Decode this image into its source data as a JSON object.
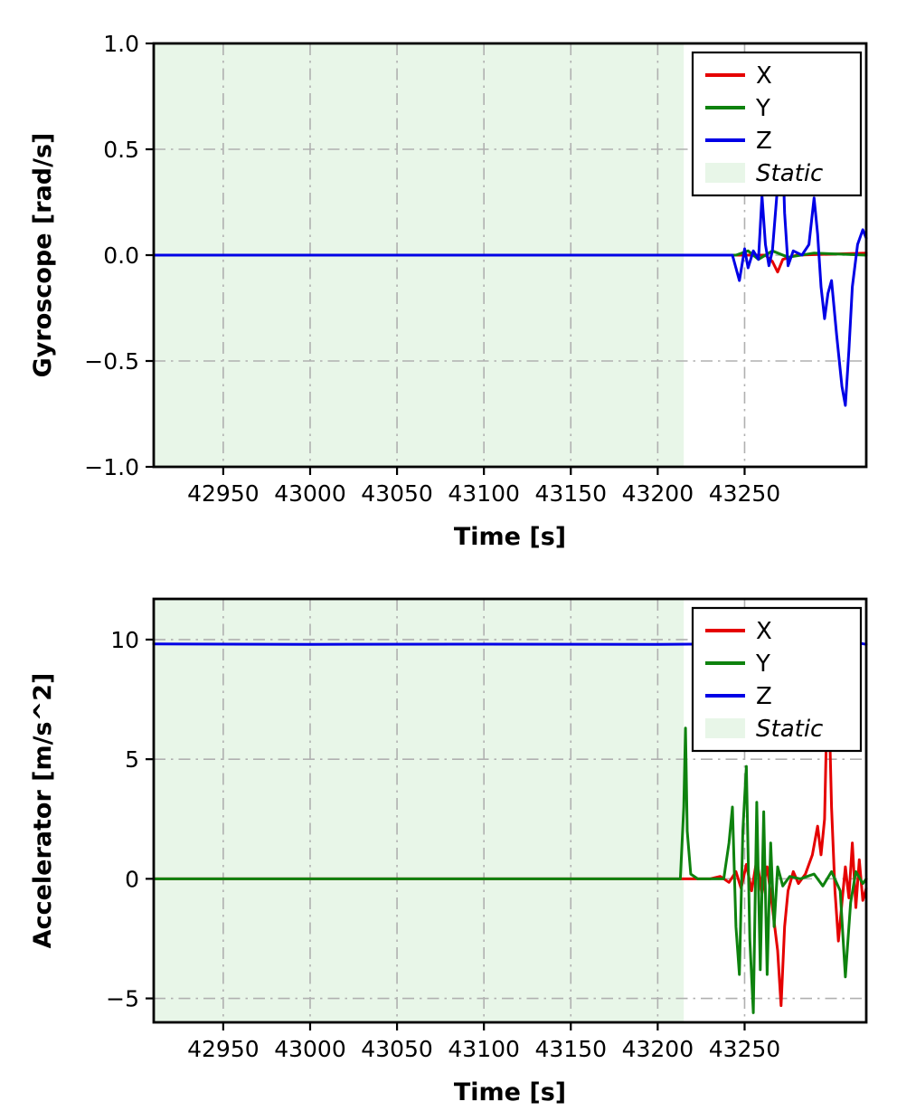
{
  "figure": {
    "background": "#ffffff",
    "axis_color": "#000000",
    "grid_color": "#b0b0b0"
  },
  "chart_data": [
    {
      "type": "line",
      "name": "gyroscope",
      "title": "",
      "xlabel": "Time [s]",
      "ylabel": "Gyroscope [rad/s]",
      "xlim": [
        42910,
        43320
      ],
      "ylim": [
        -1.0,
        1.0
      ],
      "xtick_values": [
        42950,
        43000,
        43050,
        43100,
        43150,
        43200,
        43250
      ],
      "xtick_labels": [
        "42950",
        "43000",
        "43050",
        "43100",
        "43150",
        "43200",
        "43250"
      ],
      "ytick_values": [
        -1.0,
        -0.5,
        0.0,
        0.5,
        1.0
      ],
      "ytick_labels": [
        "−1.0",
        "−0.5",
        "0.0",
        "0.5",
        "1.0"
      ],
      "grid": {
        "style": "dash-dot",
        "color": "#b0b0b0",
        "on": true
      },
      "legend": {
        "position": "upper-right",
        "entries": [
          {
            "label": "X",
            "color": "#e50000",
            "type": "line",
            "italic": false
          },
          {
            "label": "Y",
            "color": "#0e820e",
            "type": "line",
            "italic": false
          },
          {
            "label": "Z",
            "color": "#0000e6",
            "type": "line",
            "italic": false
          },
          {
            "label": "Static",
            "color": "#e8f6e8",
            "type": "patch",
            "italic": true
          }
        ]
      },
      "static_region": {
        "label": "Static",
        "x0": 42910,
        "x1": 43215,
        "fill": "#e8f6e8"
      },
      "series": [
        {
          "name": "X",
          "color": "#e50000",
          "points": [
            [
              42910,
              0
            ],
            [
              43230,
              0
            ],
            [
              43262,
              0
            ],
            [
              43266,
              -0.03
            ],
            [
              43269,
              -0.08
            ],
            [
              43272,
              -0.02
            ],
            [
              43280,
              0
            ],
            [
              43320,
              0.01
            ]
          ]
        },
        {
          "name": "Y",
          "color": "#0e820e",
          "points": [
            [
              42910,
              0
            ],
            [
              43245,
              0
            ],
            [
              43252,
              0.02
            ],
            [
              43258,
              -0.02
            ],
            [
              43266,
              0.02
            ],
            [
              43275,
              -0.01
            ],
            [
              43290,
              0.01
            ],
            [
              43320,
              0
            ]
          ]
        },
        {
          "name": "Z",
          "color": "#0000e6",
          "points": [
            [
              42910,
              0
            ],
            [
              43243,
              0
            ],
            [
              43247,
              -0.12
            ],
            [
              43250,
              0.03
            ],
            [
              43252,
              -0.06
            ],
            [
              43255,
              0.02
            ],
            [
              43258,
              -0.02
            ],
            [
              43260,
              0.28
            ],
            [
              43262,
              0.05
            ],
            [
              43264,
              -0.05
            ],
            [
              43266,
              0.02
            ],
            [
              43269,
              0.33
            ],
            [
              43271,
              0.74
            ],
            [
              43273,
              0.2
            ],
            [
              43275,
              -0.05
            ],
            [
              43278,
              0.02
            ],
            [
              43283,
              0
            ],
            [
              43287,
              0.05
            ],
            [
              43290,
              0.27
            ],
            [
              43292,
              0.1
            ],
            [
              43294,
              -0.15
            ],
            [
              43296,
              -0.3
            ],
            [
              43298,
              -0.18
            ],
            [
              43300,
              -0.12
            ],
            [
              43303,
              -0.38
            ],
            [
              43306,
              -0.62
            ],
            [
              43308,
              -0.71
            ],
            [
              43310,
              -0.45
            ],
            [
              43312,
              -0.15
            ],
            [
              43315,
              0.05
            ],
            [
              43318,
              0.12
            ],
            [
              43320,
              0.08
            ]
          ]
        }
      ]
    },
    {
      "type": "line",
      "name": "accelerometer",
      "title": "",
      "xlabel": "Time [s]",
      "ylabel": "Accelerator [m/s^2]",
      "xlim": [
        42910,
        43320
      ],
      "ylim": [
        -6.0,
        11.7
      ],
      "xtick_values": [
        42950,
        43000,
        43050,
        43100,
        43150,
        43200,
        43250
      ],
      "xtick_labels": [
        "42950",
        "43000",
        "43050",
        "43100",
        "43150",
        "43200",
        "43250"
      ],
      "ytick_values": [
        -5,
        0,
        5,
        10
      ],
      "ytick_labels": [
        "−5",
        "0",
        "5",
        "10"
      ],
      "grid": {
        "style": "dash-dot",
        "color": "#b0b0b0",
        "on": true
      },
      "legend": {
        "position": "upper-right",
        "entries": [
          {
            "label": "X",
            "color": "#e50000",
            "type": "line",
            "italic": false
          },
          {
            "label": "Y",
            "color": "#0e820e",
            "type": "line",
            "italic": false
          },
          {
            "label": "Z",
            "color": "#0000e6",
            "type": "line",
            "italic": false
          },
          {
            "label": "Static",
            "color": "#e8f6e8",
            "type": "patch",
            "italic": true
          }
        ]
      },
      "static_region": {
        "label": "Static",
        "x0": 42910,
        "x1": 43215,
        "fill": "#e8f6e8"
      },
      "series": [
        {
          "name": "X",
          "color": "#e50000",
          "points": [
            [
              42910,
              0
            ],
            [
              43230,
              0
            ],
            [
              43236,
              0.1
            ],
            [
              43241,
              -0.15
            ],
            [
              43245,
              0.3
            ],
            [
              43248,
              -0.4
            ],
            [
              43251,
              0.6
            ],
            [
              43254,
              -0.5
            ],
            [
              43257,
              0.8
            ],
            [
              43260,
              -0.6
            ],
            [
              43263,
              0.5
            ],
            [
              43266,
              -1.2
            ],
            [
              43269,
              -3.0
            ],
            [
              43271,
              -5.3
            ],
            [
              43273,
              -2.0
            ],
            [
              43275,
              -0.5
            ],
            [
              43278,
              0.3
            ],
            [
              43281,
              -0.2
            ],
            [
              43285,
              0.2
            ],
            [
              43289,
              1.0
            ],
            [
              43292,
              2.2
            ],
            [
              43294,
              1.0
            ],
            [
              43296,
              2.5
            ],
            [
              43298,
              9.0
            ],
            [
              43300,
              3.0
            ],
            [
              43302,
              -0.5
            ],
            [
              43304,
              -2.6
            ],
            [
              43306,
              -1.0
            ],
            [
              43308,
              0.5
            ],
            [
              43310,
              -0.8
            ],
            [
              43312,
              1.5
            ],
            [
              43314,
              -1.2
            ],
            [
              43316,
              0.8
            ],
            [
              43318,
              -0.9
            ],
            [
              43320,
              -0.4
            ]
          ]
        },
        {
          "name": "Y",
          "color": "#0e820e",
          "points": [
            [
              42910,
              0
            ],
            [
              43213,
              0
            ],
            [
              43215,
              3.0
            ],
            [
              43216,
              6.3
            ],
            [
              43217,
              2.0
            ],
            [
              43219,
              0.2
            ],
            [
              43223,
              0
            ],
            [
              43238,
              0
            ],
            [
              43241,
              1.5
            ],
            [
              43243,
              3.0
            ],
            [
              43245,
              -2.0
            ],
            [
              43247,
              -4.0
            ],
            [
              43249,
              2.0
            ],
            [
              43251,
              4.7
            ],
            [
              43253,
              -2.5
            ],
            [
              43255,
              -5.6
            ],
            [
              43257,
              3.2
            ],
            [
              43259,
              -3.8
            ],
            [
              43261,
              2.8
            ],
            [
              43263,
              -4.0
            ],
            [
              43265,
              1.5
            ],
            [
              43267,
              -2.0
            ],
            [
              43269,
              0.5
            ],
            [
              43272,
              -0.3
            ],
            [
              43276,
              0.1
            ],
            [
              43282,
              0
            ],
            [
              43290,
              0.2
            ],
            [
              43295,
              -0.3
            ],
            [
              43300,
              0.3
            ],
            [
              43305,
              -0.5
            ],
            [
              43308,
              -4.1
            ],
            [
              43311,
              -1.0
            ],
            [
              43314,
              0.3
            ],
            [
              43318,
              -0.2
            ],
            [
              43320,
              0
            ]
          ]
        },
        {
          "name": "Z",
          "color": "#0000e6",
          "points": [
            [
              42910,
              9.82
            ],
            [
              43000,
              9.8
            ],
            [
              43100,
              9.81
            ],
            [
              43200,
              9.8
            ],
            [
              43240,
              9.82
            ],
            [
              43260,
              9.78
            ],
            [
              43280,
              9.82
            ],
            [
              43295,
              9.85
            ],
            [
              43300,
              9.6
            ],
            [
              43304,
              9.82
            ],
            [
              43308,
              9.92
            ],
            [
              43312,
              9.75
            ],
            [
              43316,
              9.85
            ],
            [
              43320,
              9.8
            ]
          ]
        }
      ]
    }
  ]
}
